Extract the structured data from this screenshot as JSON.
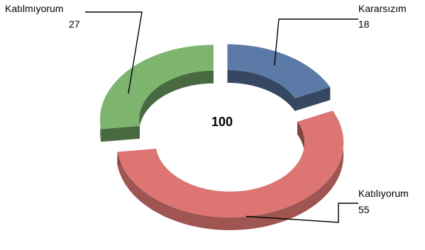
{
  "chart_data": {
    "type": "pie",
    "style": "exploded 3D doughnut",
    "total": 100,
    "series": [
      {
        "name": "Kararsızım",
        "value": 18,
        "color": "#5B7AA8"
      },
      {
        "name": "Katılıyorum",
        "value": 55,
        "color": "#DD7672"
      },
      {
        "name": "Katılmıyorum",
        "value": 27,
        "color": "#7DB56F"
      }
    ],
    "data_labels": [
      {
        "category": "Kararsızım",
        "value": "18"
      },
      {
        "category": "Katılıyorum",
        "value": "55"
      },
      {
        "category": "Katılmıyorum",
        "value": "27"
      }
    ],
    "legend": "none"
  }
}
